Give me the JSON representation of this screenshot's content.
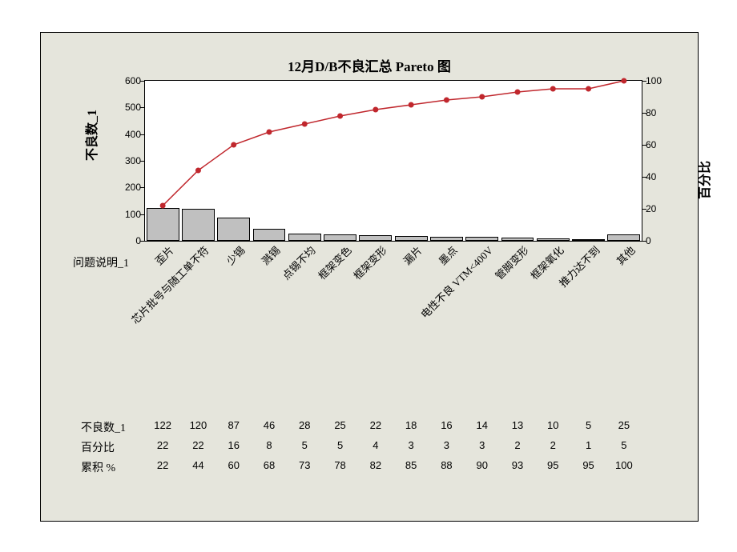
{
  "chart": {
    "type": "pareto",
    "title": "12月D/B不良汇总 Pareto 图",
    "title_fontsize": 17,
    "background_color": "#e5e5dc",
    "plot_background_color": "#ffffff",
    "border_color": "#000000",
    "bar_fill": "#c0c0c0",
    "line_color": "#c0272d",
    "marker_color": "#c0272d",
    "marker_radius": 3.5,
    "line_width": 1.5,
    "y_left": {
      "label": "不良数_1",
      "min": 0,
      "max": 600,
      "step": 100,
      "fontweight": "bold",
      "fontsize": 16
    },
    "y_right": {
      "label": "百分比",
      "min": 0,
      "max": 100,
      "step": 20,
      "fontweight": "bold",
      "fontsize": 16
    },
    "x_label": "问题说明_1",
    "categories": [
      "歪片",
      "芯片批号与随工单不符",
      "少锡",
      "溅锡",
      "点锡不均",
      "框架变色",
      "框架变形",
      "漏片",
      "墨点",
      "电性不良 VTM<400V",
      "管脚变形",
      "框架氧化",
      "推力达不到",
      "其他"
    ],
    "counts": [
      122,
      120,
      87,
      46,
      28,
      25,
      22,
      18,
      16,
      14,
      13,
      10,
      5,
      25
    ],
    "percent": [
      22,
      22,
      16,
      8,
      5,
      5,
      4,
      3,
      3,
      3,
      2,
      2,
      1,
      5
    ],
    "cumulative": [
      22,
      44,
      60,
      68,
      73,
      78,
      82,
      85,
      88,
      90,
      93,
      95,
      95,
      100
    ],
    "row_labels": {
      "counts": "不良数_1",
      "percent": "百分比",
      "cumulative": "累积 %"
    },
    "category_fontsize": 13,
    "data_fontsize": 13
  }
}
